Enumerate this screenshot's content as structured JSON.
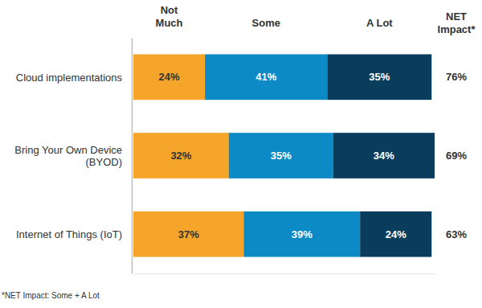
{
  "chart_data": {
    "type": "bar",
    "orientation": "horizontal",
    "stacked": true,
    "data_labels": true,
    "tick_labels": "y",
    "legend": "top",
    "categories": [
      "Cloud implementations",
      "Bring Your Own Device (BYOD)",
      "Internet of Things (IoT)"
    ],
    "series": [
      {
        "name": "Not Much",
        "color": "#f5a52a",
        "values": [
          24,
          32,
          37
        ],
        "value_labels": [
          "24%",
          "32%",
          "37%"
        ]
      },
      {
        "name": "Some",
        "color": "#0b8ac6",
        "values": [
          41,
          35,
          39
        ],
        "value_labels": [
          "41%",
          "35%",
          "39%"
        ]
      },
      {
        "name": "A Lot",
        "color": "#0a3d5c",
        "values": [
          35,
          34,
          24
        ],
        "value_labels": [
          "35%",
          "34%",
          "24%"
        ]
      }
    ],
    "xlim": [
      0,
      101
    ],
    "net_impact": {
      "label": "NET Impact*",
      "values": [
        76,
        69,
        63
      ],
      "value_labels": [
        "76%",
        "69%",
        "63%"
      ]
    },
    "annotations": [
      "*NET Impact: Some + A Lot"
    ]
  }
}
